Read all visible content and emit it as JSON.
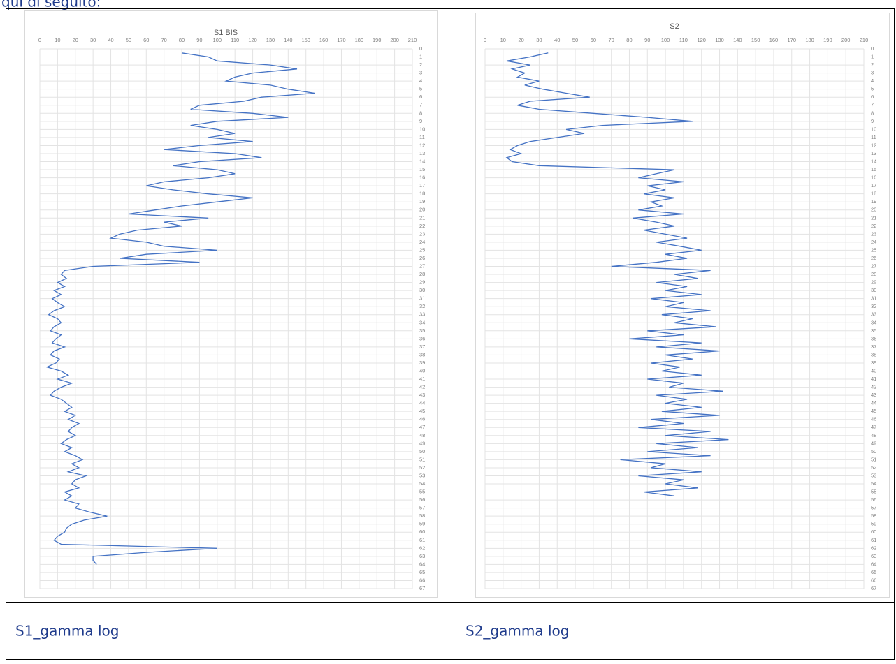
{
  "intro": "qui di seguito:",
  "captions": [
    "S1_gamma log",
    "S2_gamma log"
  ],
  "chart_data": [
    {
      "type": "line",
      "title": "S1 BIS",
      "color": "#4472c4",
      "grid": true,
      "value_axis": "top",
      "depth_axis": "right",
      "x": [
        0.5,
        1,
        1.5,
        2,
        2.5,
        3,
        3.5,
        4,
        4.5,
        5,
        5.5,
        6,
        6.5,
        7,
        7.5,
        8,
        8.5,
        9,
        9.5,
        10,
        10.5,
        11,
        11.5,
        12,
        12.5,
        13,
        13.5,
        14,
        14.5,
        15,
        15.5,
        16,
        16.5,
        17,
        17.5,
        18,
        18.5,
        19,
        19.5,
        20,
        20.5,
        21,
        21.5,
        22,
        22.5,
        23,
        23.5,
        24,
        24.5,
        25,
        25.5,
        26,
        26.5,
        27,
        27.5,
        28,
        28.5,
        29,
        29.5,
        30,
        30.5,
        31,
        31.5,
        32,
        32.5,
        33,
        33.5,
        34,
        34.5,
        35,
        35.5,
        36,
        36.5,
        37,
        37.5,
        38,
        38.5,
        39,
        39.5,
        40,
        40.5,
        41,
        41.5,
        42,
        42.5,
        43,
        43.5,
        44,
        44.5,
        45,
        45.5,
        46,
        46.5,
        47,
        47.5,
        48,
        48.5,
        49,
        49.5,
        50,
        50.5,
        51,
        51.5,
        52,
        52.5,
        53,
        53.5,
        54,
        54.5,
        55,
        55.5,
        56,
        56.5,
        57,
        57.5,
        58,
        58.5,
        59,
        59.5,
        60,
        60.5,
        61,
        61.5,
        62,
        62.5,
        63,
        63.5,
        64
      ],
      "values": [
        80,
        95,
        100,
        130,
        145,
        120,
        110,
        105,
        130,
        140,
        155,
        125,
        115,
        90,
        85,
        120,
        140,
        100,
        85,
        100,
        110,
        95,
        120,
        90,
        70,
        110,
        125,
        90,
        75,
        100,
        110,
        95,
        70,
        60,
        75,
        95,
        120,
        100,
        80,
        65,
        50,
        95,
        70,
        80,
        55,
        45,
        40,
        60,
        70,
        100,
        60,
        45,
        90,
        30,
        14,
        12,
        15,
        10,
        14,
        8,
        12,
        7,
        10,
        14,
        8,
        5,
        10,
        12,
        8,
        6,
        12,
        9,
        7,
        14,
        8,
        6,
        11,
        9,
        4,
        12,
        16,
        10,
        18,
        12,
        8,
        6,
        12,
        15,
        18,
        14,
        20,
        16,
        22,
        18,
        16,
        20,
        15,
        12,
        18,
        14,
        20,
        24,
        18,
        22,
        16,
        26,
        20,
        18,
        22,
        14,
        18,
        14,
        22,
        20,
        28,
        38,
        25,
        18,
        15,
        14,
        10,
        8,
        12,
        100,
        60,
        30,
        30,
        32
      ],
      "ylim": [
        0,
        210
      ],
      "yticks": [
        0,
        10,
        20,
        30,
        40,
        50,
        60,
        70,
        80,
        90,
        100,
        110,
        120,
        130,
        140,
        150,
        160,
        170,
        180,
        190,
        200,
        210
      ],
      "xlim": [
        0,
        67
      ],
      "xticks": [
        0,
        1,
        2,
        3,
        4,
        5,
        6,
        7,
        8,
        9,
        10,
        11,
        12,
        13,
        14,
        15,
        16,
        17,
        18,
        19,
        20,
        21,
        22,
        23,
        24,
        25,
        26,
        27,
        28,
        29,
        30,
        31,
        32,
        33,
        34,
        35,
        36,
        37,
        38,
        39,
        40,
        41,
        42,
        43,
        44,
        45,
        46,
        47,
        48,
        49,
        50,
        51,
        52,
        53,
        54,
        55,
        56,
        57,
        58,
        59,
        60,
        61,
        62,
        63,
        64,
        65,
        66,
        67
      ]
    },
    {
      "type": "line",
      "title": "S2",
      "color": "#4472c4",
      "grid": true,
      "value_axis": "top",
      "depth_axis": "right",
      "x": [
        0.5,
        1,
        1.5,
        2,
        2.5,
        3,
        3.5,
        4,
        4.5,
        5,
        5.5,
        6,
        6.5,
        7,
        7.5,
        8,
        8.5,
        9,
        9.5,
        10,
        10.5,
        11,
        11.5,
        12,
        12.5,
        13,
        13.5,
        14,
        14.5,
        15,
        15.5,
        16,
        16.5,
        17,
        17.5,
        18,
        18.5,
        19,
        19.5,
        20,
        20.5,
        21,
        21.5,
        22,
        22.5,
        23,
        23.5,
        24,
        24.5,
        25,
        25.5,
        26,
        26.5,
        27,
        27.5,
        28,
        28.5,
        29,
        29.5,
        30,
        30.5,
        31,
        31.5,
        32,
        32.5,
        33,
        33.5,
        34,
        34.5,
        35,
        35.5,
        36,
        36.5,
        37,
        37.5,
        38,
        38.5,
        39,
        39.5,
        40,
        40.5,
        41,
        41.5,
        42,
        42.5,
        43,
        43.5,
        44,
        44.5,
        45,
        45.5,
        46,
        46.5,
        47,
        47.5,
        48,
        48.5,
        49,
        49.5,
        50,
        50.5,
        51,
        51.5,
        52,
        52.5,
        53,
        53.5,
        54,
        54.5,
        55,
        55.5
      ],
      "values": [
        35,
        25,
        12,
        25,
        15,
        22,
        18,
        30,
        22,
        32,
        45,
        58,
        25,
        18,
        30,
        60,
        90,
        115,
        65,
        45,
        55,
        40,
        25,
        18,
        14,
        20,
        12,
        15,
        30,
        105,
        95,
        85,
        110,
        90,
        100,
        88,
        105,
        92,
        98,
        85,
        110,
        82,
        95,
        105,
        88,
        100,
        112,
        95,
        108,
        120,
        100,
        112,
        95,
        70,
        125,
        105,
        118,
        95,
        112,
        100,
        120,
        92,
        110,
        100,
        125,
        98,
        115,
        105,
        128,
        90,
        110,
        80,
        120,
        95,
        130,
        100,
        115,
        92,
        108,
        98,
        120,
        90,
        110,
        102,
        132,
        95,
        112,
        100,
        120,
        98,
        130,
        92,
        110,
        85,
        125,
        100,
        135,
        95,
        118,
        90,
        125,
        75,
        100,
        92,
        120,
        85,
        110,
        100,
        118,
        88,
        105
      ],
      "ylim": [
        0,
        210
      ],
      "yticks": [
        0,
        10,
        20,
        30,
        40,
        50,
        60,
        70,
        80,
        90,
        100,
        110,
        120,
        130,
        140,
        150,
        160,
        170,
        180,
        190,
        200,
        210
      ],
      "xlim": [
        0,
        67
      ],
      "xticks": [
        0,
        1,
        2,
        3,
        4,
        5,
        6,
        7,
        8,
        9,
        10,
        11,
        12,
        13,
        14,
        15,
        16,
        17,
        18,
        19,
        20,
        21,
        22,
        23,
        24,
        25,
        26,
        27,
        28,
        29,
        30,
        31,
        32,
        33,
        34,
        35,
        36,
        37,
        38,
        39,
        40,
        41,
        42,
        43,
        44,
        45,
        46,
        47,
        48,
        49,
        50,
        51,
        52,
        53,
        54,
        55,
        56,
        57,
        58,
        59,
        60,
        61,
        62,
        63,
        64,
        65,
        66,
        67
      ]
    }
  ]
}
